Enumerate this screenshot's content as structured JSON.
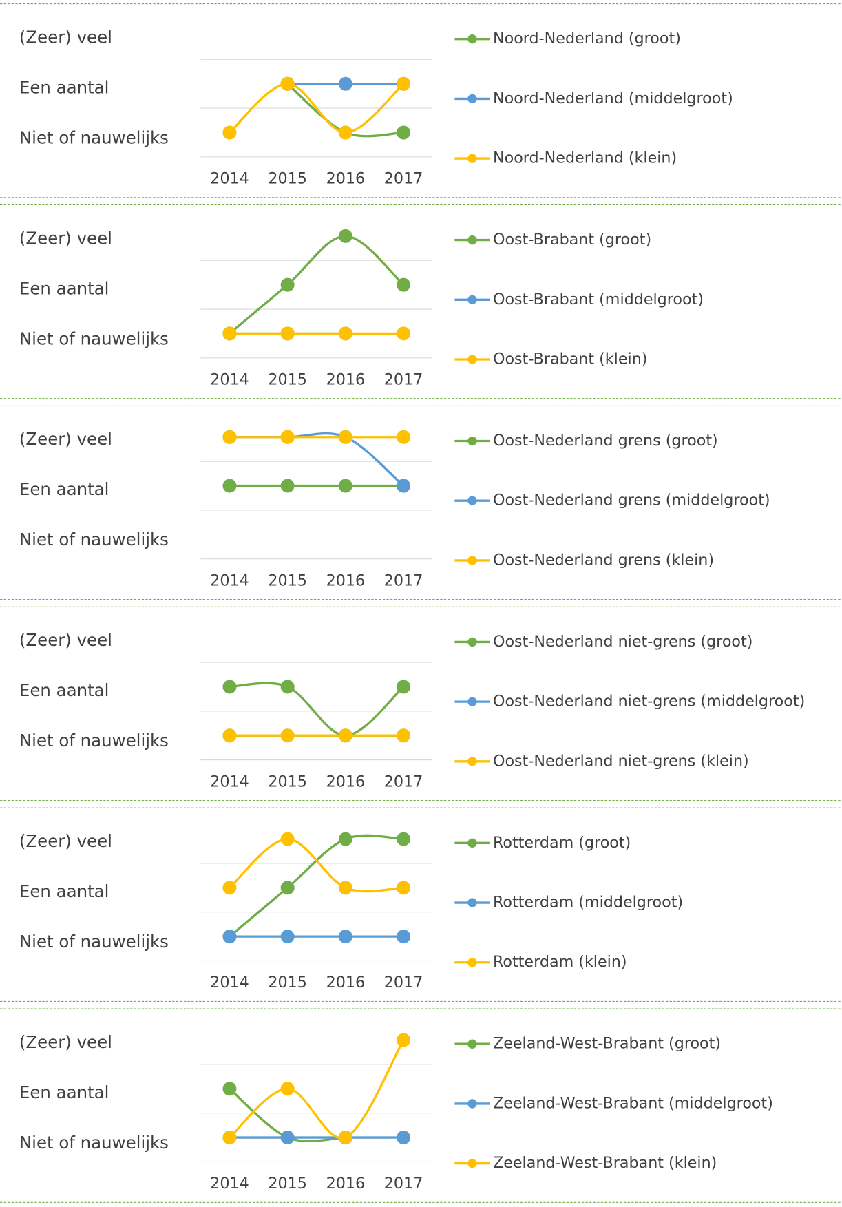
{
  "chart_data": [
    {
      "type": "line",
      "categories": [
        "2014",
        "2015",
        "2016",
        "2017"
      ],
      "ylim": [
        0.5,
        3.5
      ],
      "yticks": [
        {
          "value": 1,
          "label": "Niet of nauwelijks"
        },
        {
          "value": 2,
          "label": "Een aantal"
        },
        {
          "value": 3,
          "label": "(Zeer) veel"
        }
      ],
      "series": [
        {
          "name": "Noord-Nederland (groot)",
          "color": "#70ad47",
          "values": [
            null,
            2,
            1,
            1
          ]
        },
        {
          "name": "Noord-Nederland (middelgroot)",
          "color": "#5b9bd5",
          "values": [
            null,
            2,
            2,
            2
          ]
        },
        {
          "name": "Noord-Nederland (klein)",
          "color": "#ffc000",
          "values": [
            1,
            2,
            1,
            2
          ]
        }
      ]
    },
    {
      "type": "line",
      "categories": [
        "2014",
        "2015",
        "2016",
        "2017"
      ],
      "ylim": [
        0.5,
        3.5
      ],
      "yticks": [
        {
          "value": 1,
          "label": "Niet of nauwelijks"
        },
        {
          "value": 2,
          "label": "Een aantal"
        },
        {
          "value": 3,
          "label": "(Zeer) veel"
        }
      ],
      "series": [
        {
          "name": "Oost-Brabant (groot)",
          "color": "#70ad47",
          "values": [
            1,
            2,
            3,
            2
          ]
        },
        {
          "name": "Oost-Brabant (middelgroot)",
          "color": "#5b9bd5",
          "values": [
            1,
            1,
            1,
            null
          ]
        },
        {
          "name": "Oost-Brabant (klein)",
          "color": "#ffc000",
          "values": [
            1,
            1,
            1,
            1
          ]
        }
      ]
    },
    {
      "type": "line",
      "categories": [
        "2014",
        "2015",
        "2016",
        "2017"
      ],
      "ylim": [
        0.5,
        3.5
      ],
      "yticks": [
        {
          "value": 1,
          "label": "Niet of nauwelijks"
        },
        {
          "value": 2,
          "label": "Een aantal"
        },
        {
          "value": 3,
          "label": "(Zeer) veel"
        }
      ],
      "series": [
        {
          "name": "Oost-Nederland grens (groot)",
          "color": "#70ad47",
          "values": [
            2,
            2,
            2,
            2
          ]
        },
        {
          "name": "Oost-Nederland grens (middelgroot)",
          "color": "#5b9bd5",
          "values": [
            3,
            3,
            3,
            2
          ]
        },
        {
          "name": "Oost-Nederland grens (klein)",
          "color": "#ffc000",
          "values": [
            3,
            3,
            3,
            3
          ]
        }
      ]
    },
    {
      "type": "line",
      "categories": [
        "2014",
        "2015",
        "2016",
        "2017"
      ],
      "ylim": [
        0.5,
        3.5
      ],
      "yticks": [
        {
          "value": 1,
          "label": "Niet of nauwelijks"
        },
        {
          "value": 2,
          "label": "Een aantal"
        },
        {
          "value": 3,
          "label": "(Zeer) veel"
        }
      ],
      "series": [
        {
          "name": "Oost-Nederland niet-grens (groot)",
          "color": "#70ad47",
          "values": [
            2,
            2,
            1,
            2
          ]
        },
        {
          "name": "Oost-Nederland niet-grens (middelgroot)",
          "color": "#5b9bd5",
          "values": [
            1,
            1,
            1,
            1
          ]
        },
        {
          "name": "Oost-Nederland niet-grens (klein)",
          "color": "#ffc000",
          "values": [
            1,
            1,
            1,
            1
          ]
        }
      ]
    },
    {
      "type": "line",
      "categories": [
        "2014",
        "2015",
        "2016",
        "2017"
      ],
      "ylim": [
        0.5,
        3.5
      ],
      "yticks": [
        {
          "value": 1,
          "label": "Niet of nauwelijks"
        },
        {
          "value": 2,
          "label": "Een aantal"
        },
        {
          "value": 3,
          "label": "(Zeer) veel"
        }
      ],
      "series": [
        {
          "name": "Rotterdam (groot)",
          "color": "#70ad47",
          "values": [
            1,
            2,
            3,
            3
          ]
        },
        {
          "name": "Rotterdam (middelgroot)",
          "color": "#5b9bd5",
          "values": [
            1,
            1,
            1,
            1
          ]
        },
        {
          "name": "Rotterdam (klein)",
          "color": "#ffc000",
          "values": [
            2,
            3,
            2,
            2
          ]
        }
      ]
    },
    {
      "type": "line",
      "categories": [
        "2014",
        "2015",
        "2016",
        "2017"
      ],
      "ylim": [
        0.5,
        3.5
      ],
      "yticks": [
        {
          "value": 1,
          "label": "Niet of nauwelijks"
        },
        {
          "value": 2,
          "label": "Een aantal"
        },
        {
          "value": 3,
          "label": "(Zeer) veel"
        }
      ],
      "series": [
        {
          "name": "Zeeland-West-Brabant (groot)",
          "color": "#70ad47",
          "values": [
            2,
            1,
            1,
            null
          ]
        },
        {
          "name": "Zeeland-West-Brabant (middelgroot)",
          "color": "#5b9bd5",
          "values": [
            1,
            1,
            1,
            1
          ]
        },
        {
          "name": "Zeeland-West-Brabant (klein)",
          "color": "#ffc000",
          "values": [
            1,
            2,
            1,
            3
          ]
        }
      ]
    }
  ]
}
